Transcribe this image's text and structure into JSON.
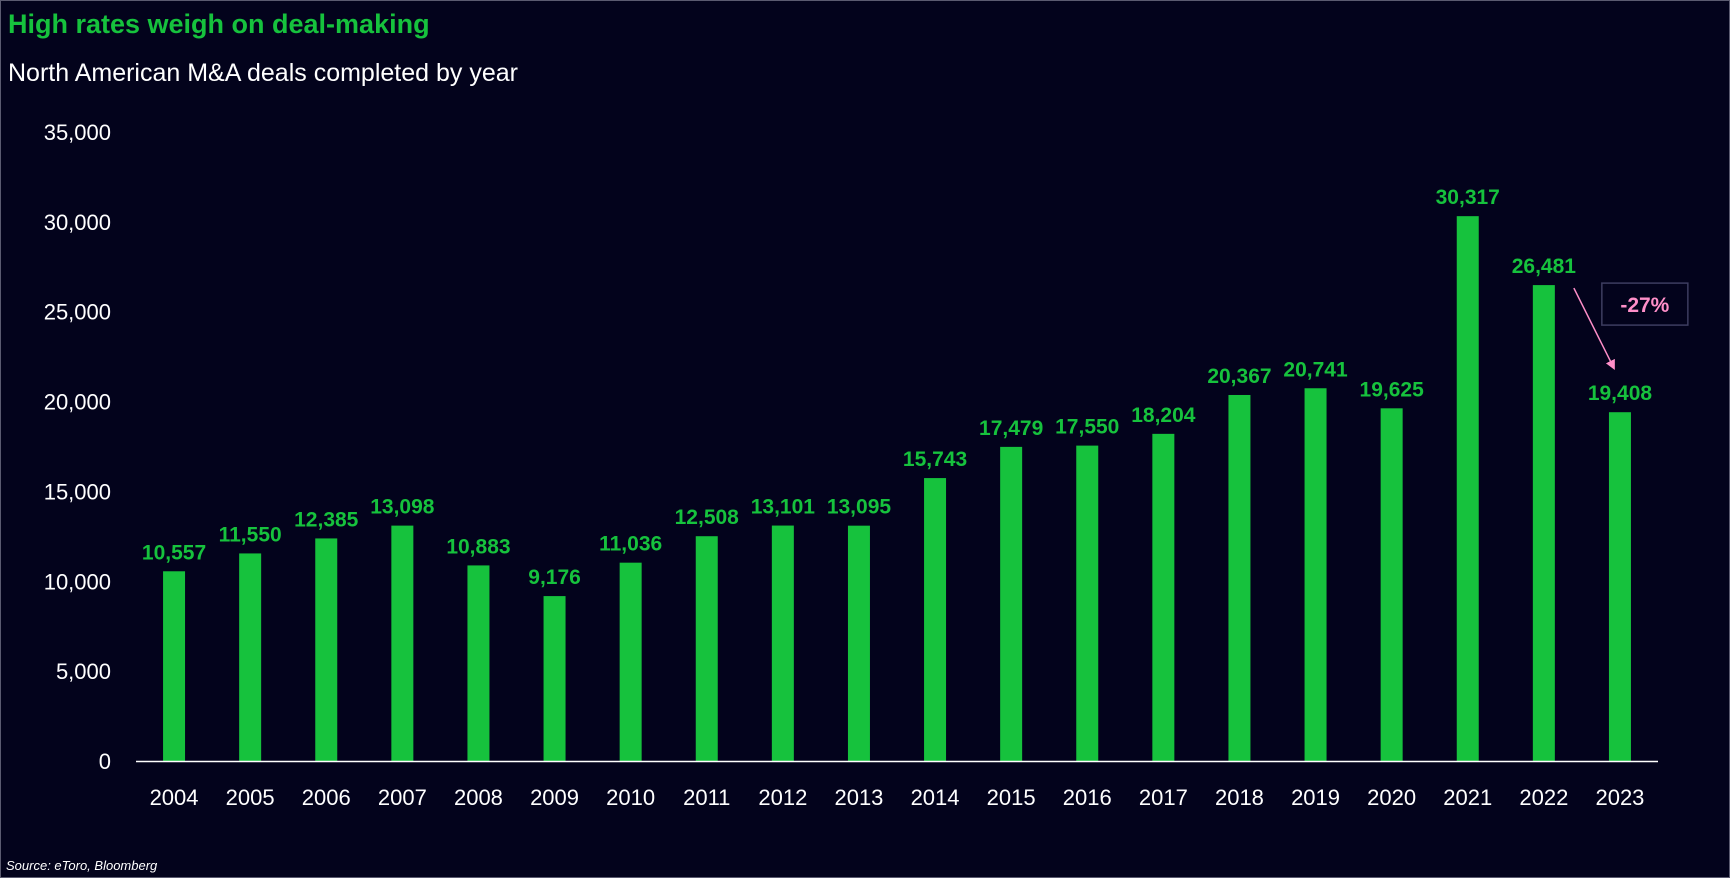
{
  "header": {
    "title": "High rates weigh on deal-making",
    "subtitle": "North American M&A deals completed by year"
  },
  "footer": {
    "source": "Source: eToro, Bloomberg"
  },
  "colors": {
    "background": "#03031c",
    "bar": "#16c23d",
    "accent_text": "#16c23d",
    "annotation": "#ff8fc9",
    "axis_text": "#ffffff"
  },
  "chart_data": {
    "type": "bar",
    "title": "High rates weigh on deal-making",
    "subtitle": "North American M&A deals completed by year",
    "xlabel": "",
    "ylabel": "",
    "categories": [
      "2004",
      "2005",
      "2006",
      "2007",
      "2008",
      "2009",
      "2010",
      "2011",
      "2012",
      "2013",
      "2014",
      "2015",
      "2016",
      "2017",
      "2018",
      "2019",
      "2020",
      "2021",
      "2022",
      "2023"
    ],
    "values": [
      10557,
      11550,
      12385,
      13098,
      10883,
      9176,
      11036,
      12508,
      13101,
      13095,
      15743,
      17479,
      17550,
      18204,
      20367,
      20741,
      19625,
      30317,
      26481,
      19408
    ],
    "data_labels": [
      "10,557",
      "11,550",
      "12,385",
      "13,098",
      "10,883",
      "9,176",
      "11,036",
      "12,508",
      "13,101",
      "13,095",
      "15,743",
      "17,479",
      "17,550",
      "18,204",
      "20,367",
      "20,741",
      "19,625",
      "30,317",
      "26,481",
      "19,408"
    ],
    "ylim": [
      0,
      35000
    ],
    "yticks": [
      0,
      5000,
      10000,
      15000,
      20000,
      25000,
      30000,
      35000
    ],
    "ytick_labels": [
      "0",
      "5,000",
      "10,000",
      "15,000",
      "20,000",
      "25,000",
      "30,000",
      "35,000"
    ],
    "grid": false,
    "legend": "none",
    "annotation": {
      "text": "-27%",
      "from_category": "2022",
      "to_category": "2023"
    }
  }
}
